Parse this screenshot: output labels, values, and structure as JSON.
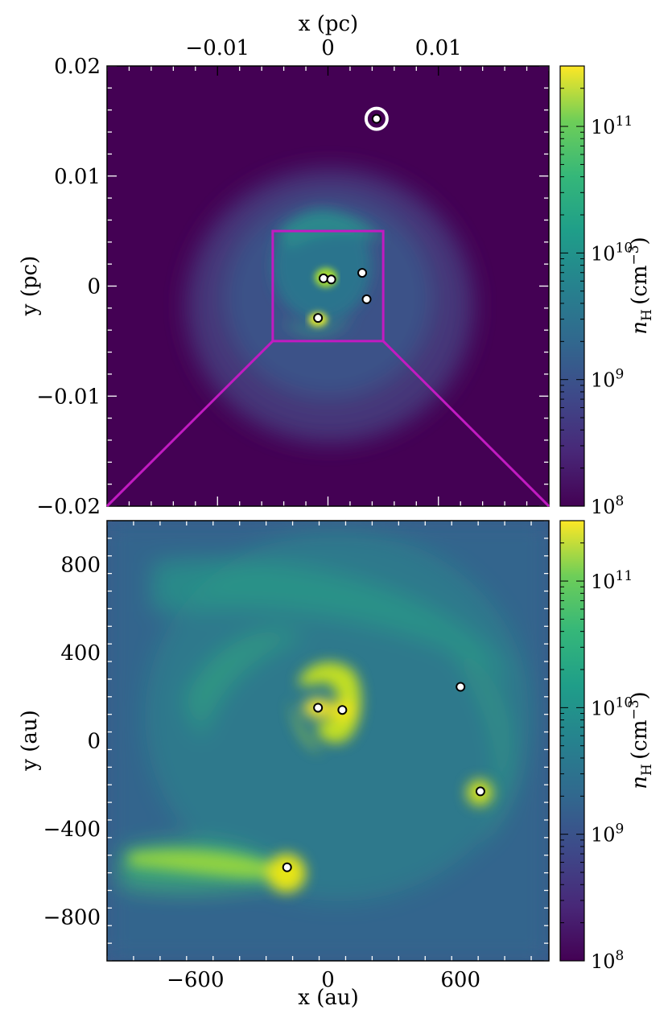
{
  "colors": {
    "viridis_dark": "#440154",
    "viridis_mid": "#21918c",
    "viridis_bright": "#fde725",
    "zoom_box": "#c11bc1",
    "sink_fill": "#ffffff",
    "sink_outline": "#000000"
  },
  "chart_data": [
    {
      "type": "heatmap",
      "panel": "top",
      "title": "",
      "xlabel": "x (pc)",
      "ylabel": "y (pc)",
      "xlim": [
        -0.02,
        0.02
      ],
      "ylim": [
        -0.02,
        0.02
      ],
      "x_ticks": [
        -0.01,
        0,
        0.01
      ],
      "x_tick_labels": [
        "−0.01",
        "0",
        "0.01"
      ],
      "y_ticks": [
        0.02,
        0.01,
        0,
        -0.01,
        -0.02
      ],
      "y_tick_labels": [
        "0.02",
        "0.01",
        "0",
        "−0.01",
        "−0.02"
      ],
      "x_axis_position": "top",
      "colorbar": {
        "label": "n_H (cm^-3)",
        "scale": "log",
        "range": [
          100000000.0,
          300000000000.0
        ],
        "tick_labels": [
          "10^8",
          "10^9",
          "10^10",
          "10^11"
        ],
        "colormap": "viridis"
      },
      "zoom_box": {
        "x": [
          -0.005,
          0.005
        ],
        "y": [
          -0.005,
          0.005
        ]
      },
      "sink_particles": [
        {
          "x": -0.0004,
          "y": 0.0007
        },
        {
          "x": 0.0003,
          "y": 0.0006
        },
        {
          "x": 0.0031,
          "y": 0.0012
        },
        {
          "x": 0.0035,
          "y": -0.0012
        },
        {
          "x": -0.0009,
          "y": -0.0029
        },
        {
          "x": 0.0044,
          "y": 0.0152,
          "ring": true
        }
      ]
    },
    {
      "type": "heatmap",
      "panel": "bottom",
      "title": "",
      "xlabel": "x (au)",
      "ylabel": "y (au)",
      "xlim": [
        -1000,
        1000
      ],
      "ylim": [
        -1000,
        1000
      ],
      "x_ticks": [
        -600,
        0,
        600
      ],
      "x_tick_labels": [
        "−600",
        "0",
        "600"
      ],
      "y_ticks": [
        800,
        400,
        0,
        -400,
        -800
      ],
      "y_tick_labels": [
        "800",
        "400",
        "0",
        "−400",
        "−800"
      ],
      "colorbar": {
        "label": "n_H (cm^-3)",
        "scale": "log",
        "range": [
          100000000.0,
          300000000000.0
        ],
        "tick_labels": [
          "10^8",
          "10^9",
          "10^10",
          "10^11"
        ],
        "colormap": "viridis"
      },
      "sink_particles": [
        {
          "x": -45,
          "y": 150
        },
        {
          "x": 65,
          "y": 140
        },
        {
          "x": 600,
          "y": 245
        },
        {
          "x": 690,
          "y": -230
        },
        {
          "x": -185,
          "y": -575
        }
      ]
    }
  ]
}
